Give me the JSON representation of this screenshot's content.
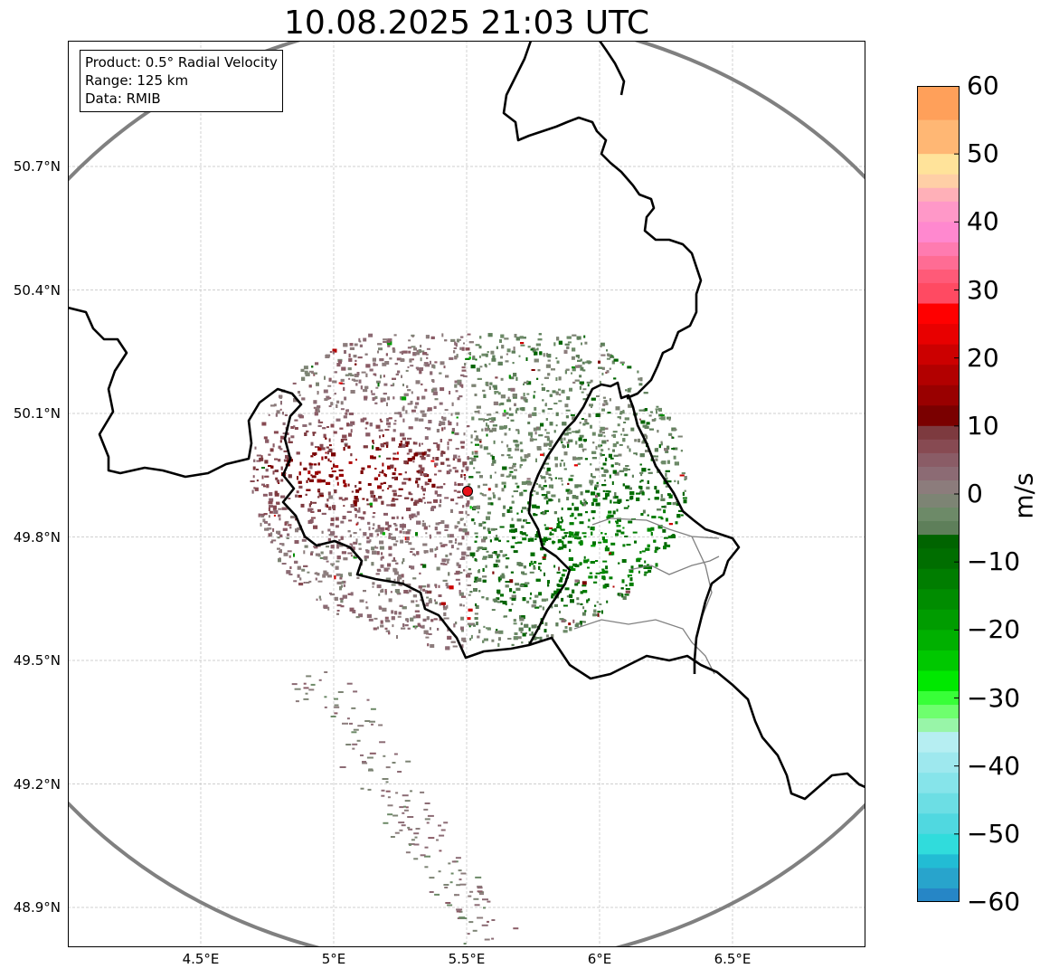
{
  "title": "10.08.2025 21:03 UTC",
  "info": {
    "product": "Product: 0.5° Radial Velocity",
    "range": "Range: 125 km",
    "data": "Data: RMIB"
  },
  "map": {
    "lon_range": [
      4.0,
      7.0
    ],
    "lat_range": [
      48.8,
      51.0
    ],
    "radar_site": {
      "lon": 5.5,
      "lat": 49.915,
      "marker_color": "#e8121a"
    },
    "range_ring_color": "#808080",
    "border_color": "#000000",
    "grid": true,
    "lat_ticks": [
      {
        "lat": 50.7,
        "label": "50.7°N"
      },
      {
        "lat": 50.4,
        "label": "50.4°N"
      },
      {
        "lat": 50.1,
        "label": "50.1°N"
      },
      {
        "lat": 49.8,
        "label": "49.8°N"
      },
      {
        "lat": 49.5,
        "label": "49.5°N"
      },
      {
        "lat": 49.2,
        "label": "49.2°N"
      },
      {
        "lat": 48.9,
        "label": "48.9°N"
      }
    ],
    "lon_ticks": [
      {
        "lon": 4.5,
        "label": "4.5°E"
      },
      {
        "lon": 5.0,
        "label": "5°E"
      },
      {
        "lon": 5.5,
        "label": "5.5°E"
      },
      {
        "lon": 6.0,
        "label": "6°E"
      },
      {
        "lon": 6.5,
        "label": "6.5°E"
      }
    ]
  },
  "colorbar": {
    "unit": "m/s",
    "min": -60,
    "max": 60,
    "ticks": [
      {
        "value": 60,
        "label": "60"
      },
      {
        "value": 50,
        "label": "50"
      },
      {
        "value": 40,
        "label": "40"
      },
      {
        "value": 30,
        "label": "30"
      },
      {
        "value": 20,
        "label": "20"
      },
      {
        "value": 10,
        "label": "10"
      },
      {
        "value": 0,
        "label": "0"
      },
      {
        "value": -10,
        "label": "−10"
      },
      {
        "value": -20,
        "label": "−20"
      },
      {
        "value": -30,
        "label": "−30"
      },
      {
        "value": -40,
        "label": "−40"
      },
      {
        "value": -50,
        "label": "−50"
      },
      {
        "value": -60,
        "label": "−60"
      }
    ],
    "bands": [
      {
        "from": 55,
        "to": 60,
        "color": "#ffa05a"
      },
      {
        "from": 50,
        "to": 55,
        "color": "#ffb774"
      },
      {
        "from": 47,
        "to": 50,
        "color": "#ffe39a"
      },
      {
        "from": 45,
        "to": 47,
        "color": "#ffcfa6"
      },
      {
        "from": 43,
        "to": 45,
        "color": "#ffb0b8"
      },
      {
        "from": 40,
        "to": 43,
        "color": "#ff98c8"
      },
      {
        "from": 37,
        "to": 40,
        "color": "#ff88cf"
      },
      {
        "from": 35,
        "to": 37,
        "color": "#ff7bb0"
      },
      {
        "from": 33,
        "to": 35,
        "color": "#ff6c94"
      },
      {
        "from": 31,
        "to": 33,
        "color": "#ff5a78"
      },
      {
        "from": 28,
        "to": 31,
        "color": "#ff4a62"
      },
      {
        "from": 25,
        "to": 28,
        "color": "#ff0000"
      },
      {
        "from": 22,
        "to": 25,
        "color": "#e80000"
      },
      {
        "from": 19,
        "to": 22,
        "color": "#cc0000"
      },
      {
        "from": 16,
        "to": 19,
        "color": "#b20000"
      },
      {
        "from": 13,
        "to": 16,
        "color": "#990000"
      },
      {
        "from": 10,
        "to": 13,
        "color": "#7a0000"
      },
      {
        "from": 8,
        "to": 10,
        "color": "#7d3a3f"
      },
      {
        "from": 6,
        "to": 8,
        "color": "#874a52"
      },
      {
        "from": 4,
        "to": 6,
        "color": "#8a5c66"
      },
      {
        "from": 2,
        "to": 4,
        "color": "#8c6b74"
      },
      {
        "from": 0,
        "to": 2,
        "color": "#8c7c7c"
      },
      {
        "from": -2,
        "to": 0,
        "color": "#7d8474"
      },
      {
        "from": -4,
        "to": -2,
        "color": "#6d8a68"
      },
      {
        "from": -6,
        "to": -4,
        "color": "#5e7f5a"
      },
      {
        "from": -8,
        "to": -6,
        "color": "#006400"
      },
      {
        "from": -11,
        "to": -8,
        "color": "#006e00"
      },
      {
        "from": -14,
        "to": -11,
        "color": "#007d00"
      },
      {
        "from": -17,
        "to": -14,
        "color": "#008c00"
      },
      {
        "from": -20,
        "to": -17,
        "color": "#009c00"
      },
      {
        "from": -23,
        "to": -20,
        "color": "#00b000"
      },
      {
        "from": -26,
        "to": -23,
        "color": "#00c800"
      },
      {
        "from": -29,
        "to": -26,
        "color": "#00e800"
      },
      {
        "from": -31,
        "to": -29,
        "color": "#38ff38"
      },
      {
        "from": -33,
        "to": -31,
        "color": "#6eff6e"
      },
      {
        "from": -35,
        "to": -33,
        "color": "#98f5a8"
      },
      {
        "from": -38,
        "to": -35,
        "color": "#b6eef2"
      },
      {
        "from": -41,
        "to": -38,
        "color": "#9ee8ee"
      },
      {
        "from": -44,
        "to": -41,
        "color": "#86e4ea"
      },
      {
        "from": -47,
        "to": -44,
        "color": "#6cdee4"
      },
      {
        "from": -50,
        "to": -47,
        "color": "#50d8e0"
      },
      {
        "from": -53,
        "to": -50,
        "color": "#30dcdc"
      },
      {
        "from": -55,
        "to": -53,
        "color": "#22bcd4"
      },
      {
        "from": -58,
        "to": -55,
        "color": "#28a4cc"
      },
      {
        "from": -60,
        "to": -58,
        "color": "#2686c6"
      }
    ]
  }
}
